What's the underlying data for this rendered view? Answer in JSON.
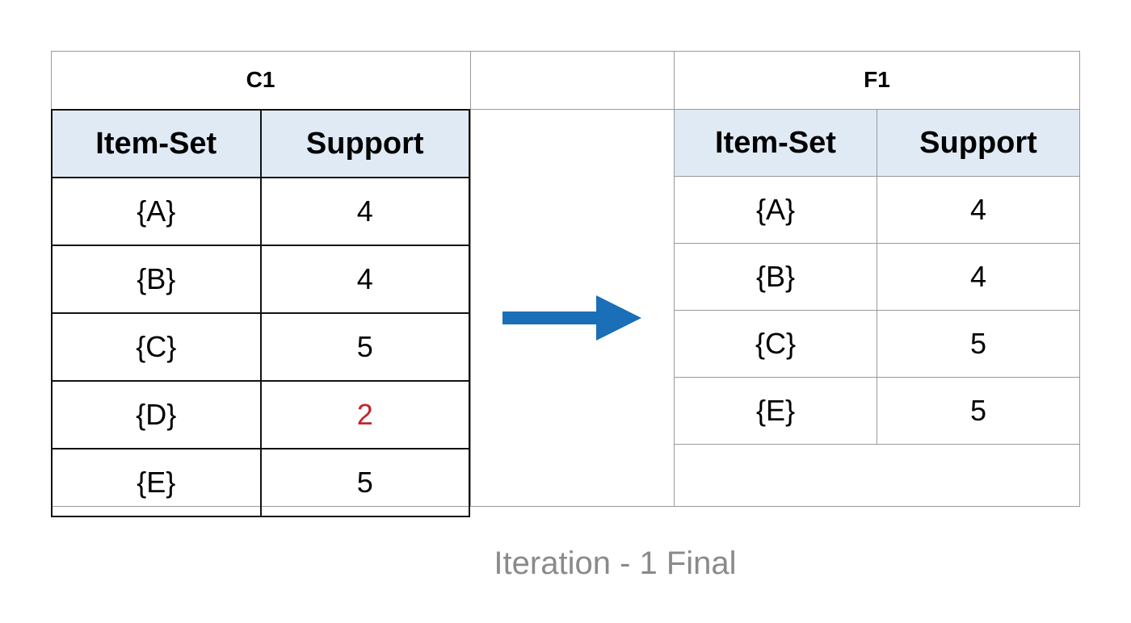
{
  "c1": {
    "title": "C1",
    "headers": [
      "Item-Set",
      "Support"
    ],
    "rows": [
      {
        "itemset": "{A}",
        "support": "4"
      },
      {
        "itemset": "{B}",
        "support": "4"
      },
      {
        "itemset": "{C}",
        "support": "5"
      },
      {
        "itemset": "{D}",
        "support": "2"
      },
      {
        "itemset": "{E}",
        "support": "5"
      }
    ]
  },
  "f1": {
    "title": "F1",
    "headers": [
      "Item-Set",
      "Support"
    ],
    "rows": [
      {
        "itemset": "{A}",
        "support": "4"
      },
      {
        "itemset": "{B}",
        "support": "4"
      },
      {
        "itemset": "{C}",
        "support": "5"
      },
      {
        "itemset": "{E}",
        "support": "5"
      }
    ]
  },
  "caption": "Iteration - 1 Final",
  "colors": {
    "header_fill": "#dfeaf5",
    "pruned_value": "#c0262d",
    "arrow": "#1a6fb8",
    "caption": "#8a8a8a"
  },
  "arrow_icon": "right-arrow-icon"
}
